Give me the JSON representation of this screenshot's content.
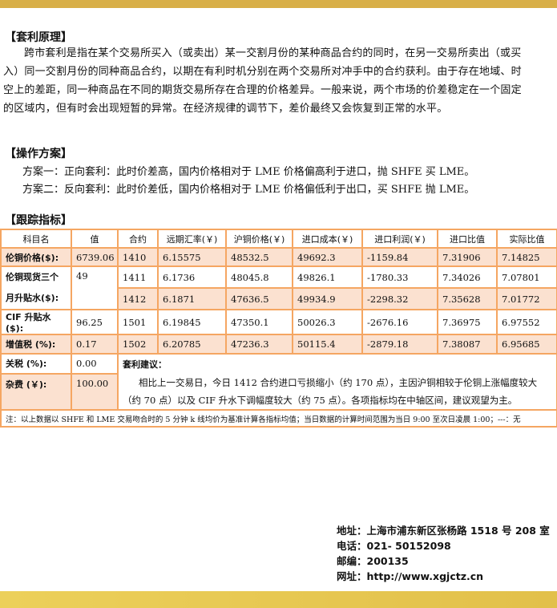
{
  "principle": {
    "title": "【套利原理】",
    "text": "跨市套利是指在某个交易所买入（或卖出）某一交割月份的某种商品合约的同时，在另一交易所卖出（或买入）同一交割月份的同种商品合约，以期在有利时机分别在两个交易所对冲手中的合约获利。由于存在地域、时空上的差距，同一种商品在不同的期货交易所存在合理的价格差异。一般来说，两个市场的价差稳定在一个固定的区域内，但有时会出现短暂的异常。在经济规律的调节下，差价最终又会恢复到正常的水平。"
  },
  "plan": {
    "title": "【操作方案】",
    "items": [
      "方案一：正向套利：此时价差高，国内价格相对于 LME  价格偏高利于进口，抛 SHFE  买 LME。",
      "方案二：反向套利：此时价差低，国内价格相对于 LME  价格偏低利于出口，买 SHFE  抛 LME。"
    ]
  },
  "tracking": {
    "title": "【跟踪指标】",
    "headers": [
      "科目名",
      "值",
      "合约",
      "远期汇率(￥)",
      "沪铜价格(￥)",
      "进口成本(￥)",
      "进口利润(￥)",
      "进口比值",
      "实际比值"
    ],
    "labels": [
      {
        "name": "伦铜价格($):",
        "value": "6739.06"
      },
      {
        "name": "伦铜现货三个月升贴水($):",
        "value": "49"
      },
      {
        "name": "CIF 升贴水($):",
        "value": "96.25"
      },
      {
        "name": "增值税 (%):",
        "value": "0.17"
      },
      {
        "name": "关税 (%):",
        "value": "0.00"
      },
      {
        "name": "杂费 (￥):",
        "value": "100.00"
      }
    ],
    "rows": [
      [
        "1410",
        "6.15575",
        "48532.5",
        "49692.3",
        "-1159.84",
        "7.31906",
        "7.14825"
      ],
      [
        "1411",
        "6.1736",
        "48045.8",
        "49826.1",
        "-1780.33",
        "7.34026",
        "7.07801"
      ],
      [
        "1412",
        "6.1871",
        "47636.5",
        "49934.9",
        "-2298.32",
        "7.35628",
        "7.01772"
      ],
      [
        "1501",
        "6.19845",
        "47350.1",
        "50026.3",
        "-2676.16",
        "7.36975",
        "6.97552"
      ],
      [
        "1502",
        "6.20785",
        "47236.3",
        "50115.4",
        "-2879.18",
        "7.38087",
        "6.95685"
      ]
    ],
    "advice_title": "套利建议：",
    "advice": "相比上一交易日，今日 1412 合约进口亏损缩小（约 170 点），主因沪铜相较于伦铜上涨幅度较大（约 70 点）以及 CIF 升水下调幅度较大（约 75 点）。各项指标均在中轴区间，建议观望为主。",
    "note": "注：以上数据以 SHFE 和 LME 交易吻合时的 5 分钟 k 线均价为基准计算各指标均值；当日数据的计算时间范围为当日 9:00 至次日凌晨 1:00；---：无"
  },
  "contact": {
    "address": "地址：上海市浦东新区张杨路 1518 号 208 室",
    "phone": "电话：021- 50152098",
    "postcode": "邮编：200135",
    "website": "网址：http://www.xgjctz.cn"
  },
  "colors": {
    "accent_bar": "#d8af48",
    "table_border": "#f5a662",
    "row_shade": "#fbe1d0"
  }
}
